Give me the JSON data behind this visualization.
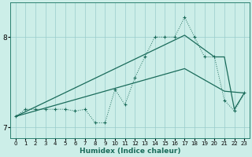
{
  "xlabel": "Humidex (Indice chaleur)",
  "bg_color": "#cceee8",
  "grid_color": "#99cccc",
  "line_color": "#1a6b5a",
  "xlim": [
    -0.5,
    23.5
  ],
  "ylim": [
    6.88,
    8.38
  ],
  "yticks": [
    7,
    8
  ],
  "xticks": [
    0,
    1,
    2,
    3,
    4,
    5,
    6,
    7,
    8,
    9,
    10,
    11,
    12,
    13,
    14,
    15,
    16,
    17,
    18,
    19,
    20,
    21,
    22,
    23
  ],
  "line1_x": [
    0,
    1,
    2,
    3,
    4,
    5,
    6,
    7,
    8,
    9,
    10,
    11,
    12,
    13,
    14,
    15,
    16,
    17,
    18,
    19,
    20,
    21,
    22,
    23
  ],
  "line1_y": [
    7.12,
    7.2,
    7.2,
    7.2,
    7.2,
    7.2,
    7.18,
    7.2,
    7.05,
    7.05,
    7.42,
    7.25,
    7.55,
    7.78,
    8.0,
    8.0,
    8.0,
    8.22,
    8.0,
    7.78,
    7.78,
    7.3,
    7.18,
    7.38
  ],
  "line2_x": [
    0,
    17,
    20,
    21,
    22,
    23
  ],
  "line2_y": [
    7.12,
    8.02,
    7.78,
    7.78,
    7.2,
    7.38
  ],
  "line3_x": [
    0,
    17,
    21,
    23
  ],
  "line3_y": [
    7.12,
    7.65,
    7.4,
    7.38
  ]
}
